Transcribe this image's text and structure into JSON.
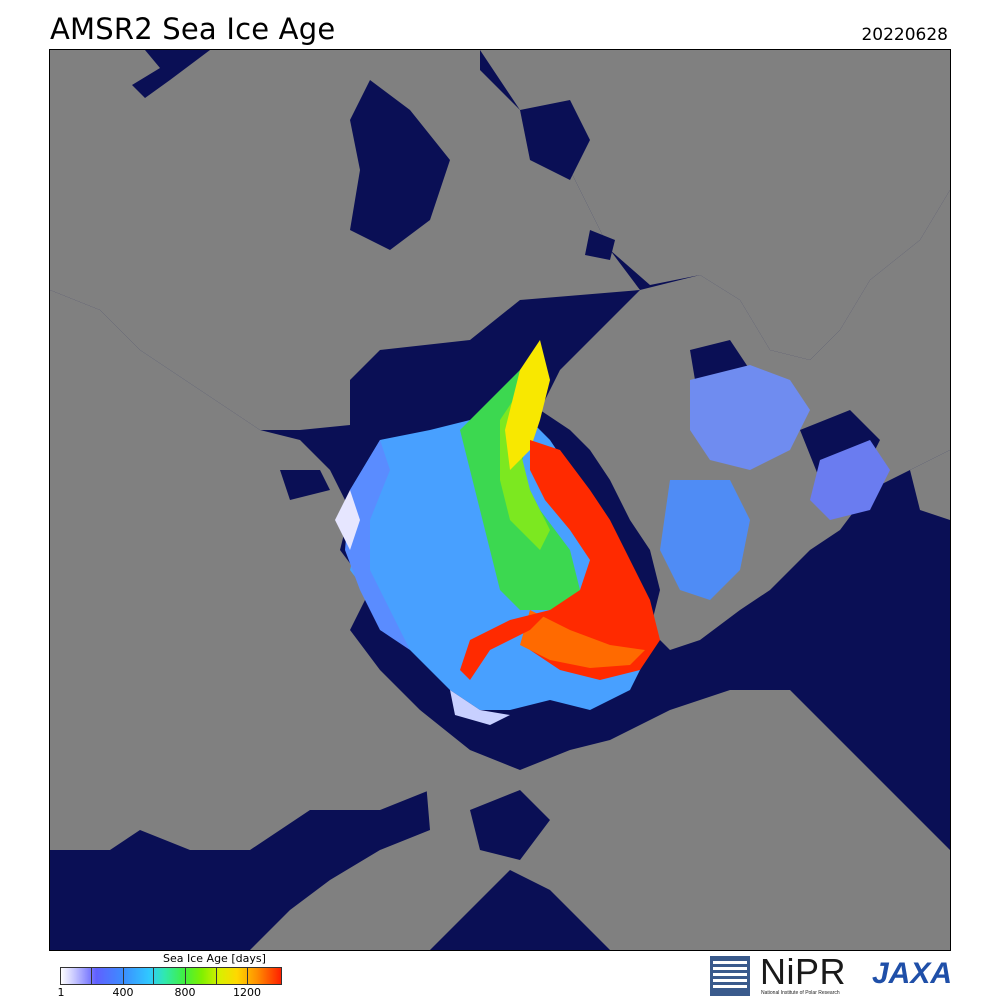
{
  "header": {
    "title": "AMSR2 Sea Ice Age",
    "date": "20220628"
  },
  "legend": {
    "title": "Sea Ice Age [days]",
    "min": 1,
    "max": 1460,
    "ticks": [
      "1",
      "400",
      "800",
      "1200"
    ],
    "colors": [
      "#ffffff",
      "#c8c8ff",
      "#6060ff",
      "#3c8cff",
      "#30c8ff",
      "#40f040",
      "#d8f000",
      "#ffd800",
      "#ff9000",
      "#ff2000"
    ]
  },
  "map": {
    "colors": {
      "ocean": "#0a0f55",
      "land": "#808080",
      "ice_young": "#5a8cff",
      "ice_first_year": "#48a0ff",
      "ice_second_year": "#3cd850",
      "ice_third_year": "#f8e800",
      "ice_multi_year": "#ff2a00"
    }
  },
  "logos": {
    "nipr": "NiPR",
    "nipr_subtitle": "National Institute of Polar Research",
    "jaxa": "JAXA"
  }
}
